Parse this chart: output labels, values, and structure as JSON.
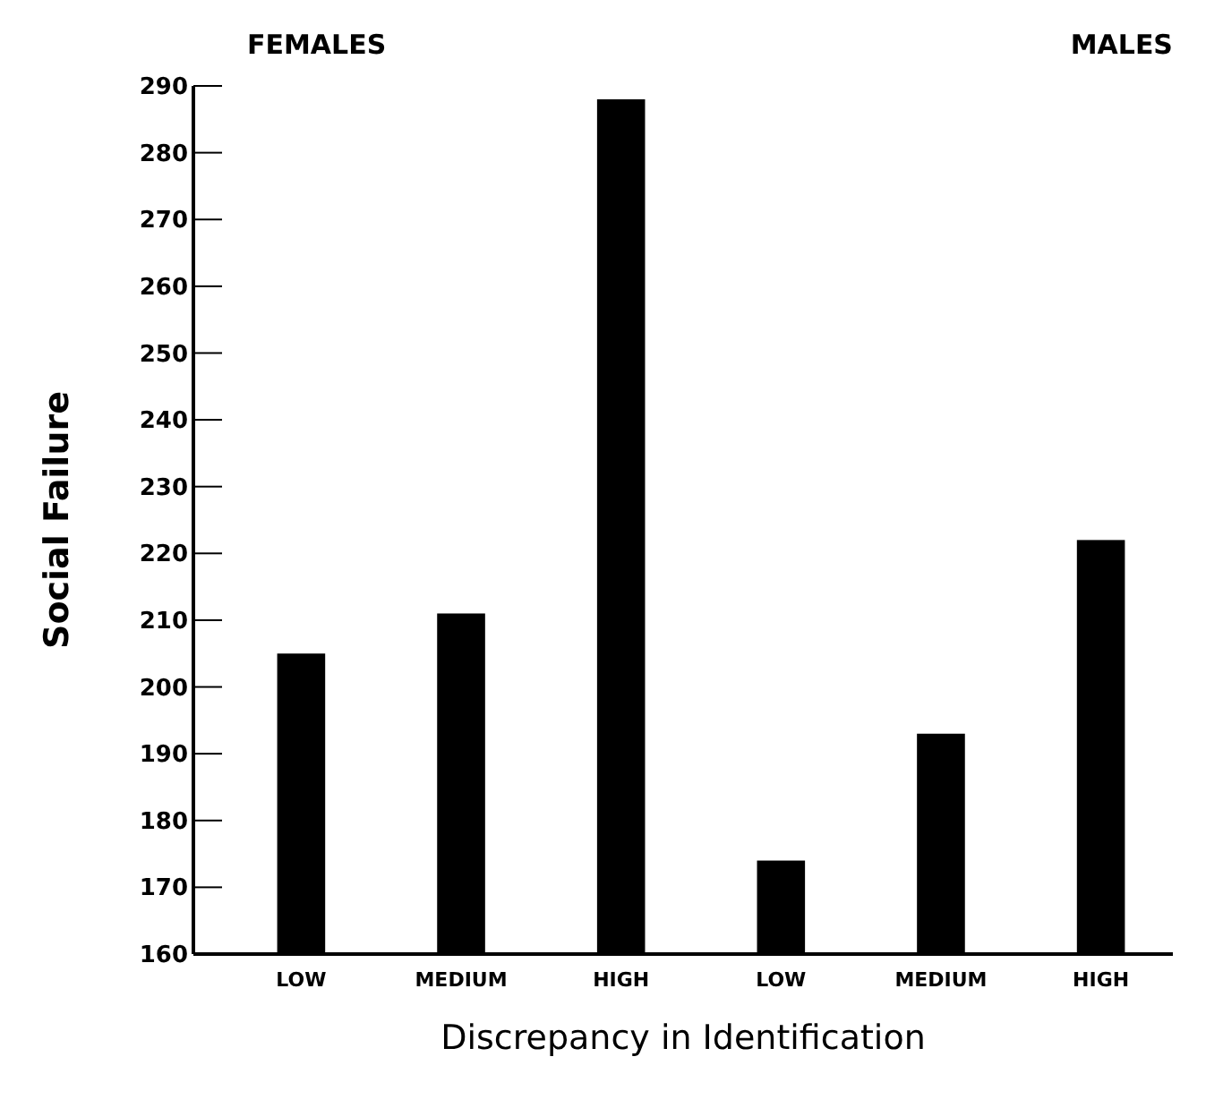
{
  "chart_data": {
    "type": "bar",
    "xlabel": "Discrepancy in Identification",
    "ylabel": "Social Failure",
    "annotations": [
      "FEMALES",
      "MALES"
    ],
    "categories": [
      "LOW",
      "MEDIUM",
      "HIGH",
      "LOW",
      "MEDIUM",
      "HIGH"
    ],
    "values": [
      205,
      211,
      288,
      174,
      193,
      222
    ],
    "color": "#000000",
    "ylim": [
      160,
      290
    ],
    "yticks": [
      160,
      170,
      180,
      190,
      200,
      210,
      220,
      230,
      240,
      250,
      260,
      270,
      280,
      290
    ]
  }
}
